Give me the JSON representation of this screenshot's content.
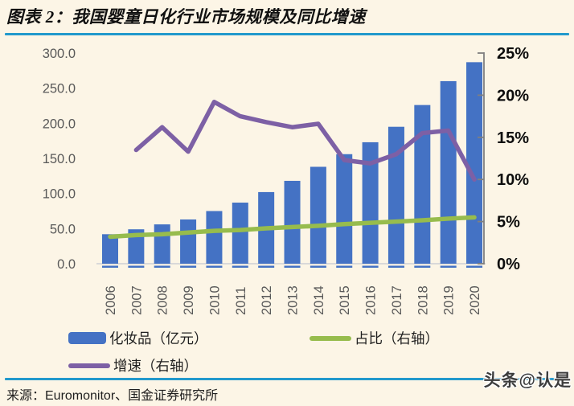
{
  "page": {
    "background_color": "#FCF5E6",
    "accent_rule_color": "#2299CC"
  },
  "header": {
    "title": "图表 2：我国婴童日化行业市场规模及同比增速"
  },
  "chart_data": {
    "type": "combo-bar-line",
    "categories": [
      "2006",
      "2007",
      "2008",
      "2009",
      "2010",
      "2011",
      "2012",
      "2013",
      "2014",
      "2015",
      "2016",
      "2017",
      "2018",
      "2019",
      "2020"
    ],
    "series": [
      {
        "name": "化妆品（亿元）",
        "type": "bar",
        "axis": "left",
        "color": "#4472C4",
        "values": [
          42,
          49,
          56,
          63,
          75,
          87,
          102,
          118,
          138,
          156,
          173,
          195,
          226,
          260,
          287
        ]
      },
      {
        "name": "占比（右轴）",
        "type": "line",
        "axis": "right",
        "color": "#97BC4D",
        "values": [
          3.2,
          3.4,
          3.5,
          3.7,
          3.9,
          4.0,
          4.2,
          4.35,
          4.5,
          4.7,
          4.85,
          5.0,
          5.15,
          5.35,
          5.5
        ]
      },
      {
        "name": "增速（右轴）",
        "type": "line",
        "axis": "right",
        "color": "#7D60A5",
        "values": [
          null,
          13.5,
          16.2,
          13.3,
          19.2,
          17.5,
          16.8,
          16.2,
          16.6,
          12.3,
          11.9,
          13.0,
          15.5,
          15.8,
          10.0
        ]
      }
    ],
    "left_axis": {
      "min": 0,
      "max": 300,
      "step": 50,
      "labels": [
        "300.0",
        "250.0",
        "200.0",
        "150.0",
        "100.0",
        "50.0",
        "0.0"
      ],
      "label_color": "#595959"
    },
    "right_axis": {
      "min": 0,
      "max": 25,
      "step": 5,
      "labels": [
        "25%",
        "20%",
        "15%",
        "10%",
        "5%",
        "0%"
      ],
      "label_color": "#0d0d0d",
      "axis_line_color": "#7F7F7F"
    },
    "x_axis": {
      "label_color": "#595959",
      "baseline_color": "#D9D9D9"
    },
    "legend_position": "bottom",
    "grid": false
  },
  "footer": {
    "source": "来源：Euromonitor、国金证券研究所"
  },
  "watermark": {
    "text": "头条@认是"
  }
}
